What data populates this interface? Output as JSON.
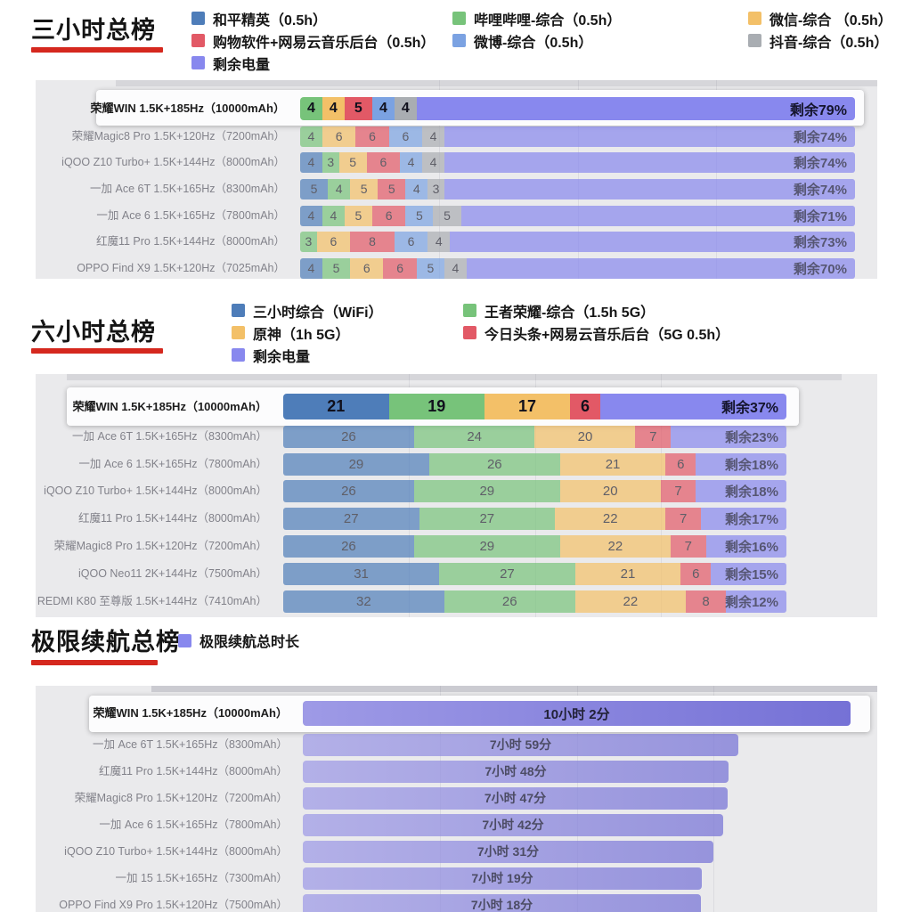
{
  "accent_underline_color": "#d5281e",
  "panel_background": "#eaeaec",
  "series_colors": {
    "darkblue": "#4e7db9",
    "green": "#77c37a",
    "orange": "#f3c068",
    "red": "#e25966",
    "lightblue": "#7ba2e2",
    "gray": "#a9adb2",
    "remain": "#8888ee"
  },
  "chart_data": [
    {
      "type": "bar",
      "stacked": true,
      "title": "三小时总榜",
      "xlim": [
        0,
        100
      ],
      "unit": "percent",
      "legend_columns": [
        [
          {
            "label": "和平精英（0.5h）",
            "color": "#4e7db9"
          },
          {
            "label": "购物软件+网易云音乐后台（0.5h）",
            "color": "#e25966"
          },
          {
            "label": "剩余电量",
            "color": "#8888ee"
          }
        ],
        [
          {
            "label": "哔哩哔哩-综合（0.5h）",
            "color": "#77c37a"
          },
          {
            "label": "微博-综合（0.5h）",
            "color": "#7ba2e2"
          }
        ],
        [
          {
            "label": "微信-综合 （0.5h）",
            "color": "#f3c068"
          },
          {
            "label": "抖音-综合（0.5h）",
            "color": "#a9adb2"
          }
        ]
      ],
      "rows": [
        {
          "label": "荣耀WIN 1.5K+185Hz（10000mAh）",
          "highlight": true,
          "segments": [
            [
              "green",
              4
            ],
            [
              "orange",
              4
            ],
            [
              "red",
              5
            ],
            [
              "lightblue",
              4
            ],
            [
              "gray",
              4
            ]
          ],
          "remain": 79,
          "remain_label": "剩余79%"
        },
        {
          "label": "荣耀Magic8 Pro 1.5K+120Hz（7200mAh）",
          "highlight": false,
          "segments": [
            [
              "green",
              4
            ],
            [
              "orange",
              6
            ],
            [
              "red",
              6
            ],
            [
              "lightblue",
              6
            ],
            [
              "gray",
              4
            ]
          ],
          "remain": 74,
          "remain_label": "剩余74%"
        },
        {
          "label": "iQOO Z10 Turbo+ 1.5K+144Hz（8000mAh）",
          "highlight": false,
          "segments": [
            [
              "darkblue",
              4
            ],
            [
              "green",
              3
            ],
            [
              "orange",
              5
            ],
            [
              "red",
              6
            ],
            [
              "lightblue",
              4
            ],
            [
              "gray",
              4
            ]
          ],
          "remain": 74,
          "remain_label": "剩余74%"
        },
        {
          "label": "一加 Ace 6T 1.5K+165Hz（8300mAh）",
          "highlight": false,
          "segments": [
            [
              "darkblue",
              5
            ],
            [
              "green",
              4
            ],
            [
              "orange",
              5
            ],
            [
              "red",
              5
            ],
            [
              "lightblue",
              4
            ],
            [
              "gray",
              3
            ]
          ],
          "remain": 74,
          "remain_label": "剩余74%"
        },
        {
          "label": "一加 Ace 6 1.5K+165Hz（7800mAh）",
          "highlight": false,
          "segments": [
            [
              "darkblue",
              4
            ],
            [
              "green",
              4
            ],
            [
              "orange",
              5
            ],
            [
              "red",
              6
            ],
            [
              "lightblue",
              5
            ],
            [
              "gray",
              5
            ]
          ],
          "remain": 71,
          "remain_label": "剩余71%"
        },
        {
          "label": "红魔11 Pro 1.5K+144Hz（8000mAh）",
          "highlight": false,
          "segments": [
            [
              "green",
              3
            ],
            [
              "orange",
              6
            ],
            [
              "red",
              8
            ],
            [
              "lightblue",
              6
            ],
            [
              "gray",
              4
            ]
          ],
          "remain": 73,
          "remain_label": "剩余73%"
        },
        {
          "label": "OPPO Find X9 1.5K+120Hz（7025mAh）",
          "highlight": false,
          "segments": [
            [
              "darkblue",
              4
            ],
            [
              "green",
              5
            ],
            [
              "orange",
              6
            ],
            [
              "red",
              6
            ],
            [
              "lightblue",
              5
            ],
            [
              "gray",
              4
            ]
          ],
          "remain": 70,
          "remain_label": "剩余70%"
        }
      ]
    },
    {
      "type": "bar",
      "stacked": true,
      "title": "六小时总榜",
      "xlim": [
        0,
        100
      ],
      "unit": "percent",
      "legend_columns": [
        [
          {
            "label": "三小时综合（WiFi）",
            "color": "#4e7db9"
          },
          {
            "label": "原神（1h 5G）",
            "color": "#f3c068"
          },
          {
            "label": "剩余电量",
            "color": "#8888ee"
          }
        ],
        [
          {
            "label": "王者荣耀-综合（1.5h 5G）",
            "color": "#77c37a"
          },
          {
            "label": "今日头条+网易云音乐后台（5G 0.5h）",
            "color": "#e25966"
          }
        ]
      ],
      "rows": [
        {
          "label": "荣耀WIN 1.5K+185Hz（10000mAh）",
          "highlight": true,
          "segments": [
            [
              "darkblue",
              21
            ],
            [
              "green",
              19
            ],
            [
              "orange",
              17
            ],
            [
              "red",
              6
            ]
          ],
          "remain": 37,
          "remain_label": "剩余37%"
        },
        {
          "label": "一加 Ace 6T 1.5K+165Hz（8300mAh）",
          "highlight": false,
          "segments": [
            [
              "darkblue",
              26
            ],
            [
              "green",
              24
            ],
            [
              "orange",
              20
            ],
            [
              "red",
              7
            ]
          ],
          "remain": 23,
          "remain_label": "剩余23%"
        },
        {
          "label": "一加 Ace 6 1.5K+165Hz（7800mAh）",
          "highlight": false,
          "segments": [
            [
              "darkblue",
              29
            ],
            [
              "green",
              26
            ],
            [
              "orange",
              21
            ],
            [
              "red",
              6
            ]
          ],
          "remain": 18,
          "remain_label": "剩余18%"
        },
        {
          "label": "iQOO Z10 Turbo+ 1.5K+144Hz（8000mAh）",
          "highlight": false,
          "segments": [
            [
              "darkblue",
              26
            ],
            [
              "green",
              29
            ],
            [
              "orange",
              20
            ],
            [
              "red",
              7
            ]
          ],
          "remain": 18,
          "remain_label": "剩余18%"
        },
        {
          "label": "红魔11 Pro 1.5K+144Hz（8000mAh）",
          "highlight": false,
          "segments": [
            [
              "darkblue",
              27
            ],
            [
              "green",
              27
            ],
            [
              "orange",
              22
            ],
            [
              "red",
              7
            ]
          ],
          "remain": 17,
          "remain_label": "剩余17%"
        },
        {
          "label": "荣耀Magic8 Pro 1.5K+120Hz（7200mAh）",
          "highlight": false,
          "segments": [
            [
              "darkblue",
              26
            ],
            [
              "green",
              29
            ],
            [
              "orange",
              22
            ],
            [
              "red",
              7
            ]
          ],
          "remain": 16,
          "remain_label": "剩余16%"
        },
        {
          "label": "iQOO Neo11 2K+144Hz（7500mAh）",
          "highlight": false,
          "segments": [
            [
              "darkblue",
              31
            ],
            [
              "green",
              27
            ],
            [
              "orange",
              21
            ],
            [
              "red",
              6
            ]
          ],
          "remain": 15,
          "remain_label": "剩余15%"
        },
        {
          "label": "REDMI K80 至尊版 1.5K+144Hz（7410mAh）",
          "highlight": false,
          "segments": [
            [
              "darkblue",
              32
            ],
            [
              "green",
              26
            ],
            [
              "orange",
              22
            ],
            [
              "red",
              8
            ]
          ],
          "remain": 12,
          "remain_label": "剩余12%"
        }
      ]
    },
    {
      "type": "bar",
      "stacked": false,
      "title": "极限续航总榜",
      "unit": "minutes",
      "max_minutes": 602,
      "legend_columns": [
        [
          {
            "label": "极限续航总时长",
            "color": "#8888ee"
          }
        ]
      ],
      "rows": [
        {
          "label": "荣耀WIN 1.5K+185Hz（10000mAh）",
          "highlight": true,
          "duration_label": "10小时 2分",
          "minutes": 602
        },
        {
          "label": "一加 Ace 6T 1.5K+165Hz（8300mAh）",
          "highlight": false,
          "duration_label": "7小时 59分",
          "minutes": 479
        },
        {
          "label": "红魔11 Pro 1.5K+144Hz（8000mAh）",
          "highlight": false,
          "duration_label": "7小时 48分",
          "minutes": 468
        },
        {
          "label": "荣耀Magic8 Pro 1.5K+120Hz（7200mAh）",
          "highlight": false,
          "duration_label": "7小时 47分",
          "minutes": 467
        },
        {
          "label": "一加 Ace 6 1.5K+165Hz（7800mAh）",
          "highlight": false,
          "duration_label": "7小时 42分",
          "minutes": 462
        },
        {
          "label": "iQOO Z10 Turbo+ 1.5K+144Hz（8000mAh）",
          "highlight": false,
          "duration_label": "7小时 31分",
          "minutes": 451
        },
        {
          "label": "一加 15 1.5K+165Hz（7300mAh）",
          "highlight": false,
          "duration_label": "7小时 19分",
          "minutes": 439
        },
        {
          "label": "OPPO Find X9 Pro 1.5K+120Hz（7500mAh）",
          "highlight": false,
          "duration_label": "7小时 18分",
          "minutes": 438
        }
      ]
    }
  ]
}
